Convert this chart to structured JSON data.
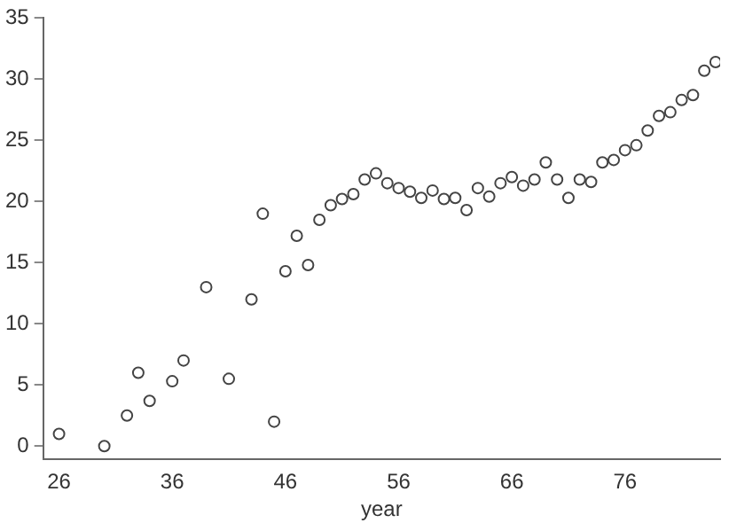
{
  "chart_data": {
    "type": "scatter",
    "xlabel": "year",
    "x": [
      26,
      30,
      32,
      33,
      34,
      36,
      37,
      39,
      41,
      43,
      44,
      45,
      46,
      47,
      48,
      49,
      50,
      51,
      52,
      53,
      54,
      55,
      56,
      57,
      58,
      59,
      60,
      61,
      62,
      63,
      64,
      65,
      66,
      67,
      68,
      69,
      70,
      71,
      72,
      73,
      74,
      75,
      76,
      77,
      78,
      79,
      80,
      81,
      82,
      83,
      84
    ],
    "series": [
      {
        "color": "#444444",
        "values": [
          1,
          0,
          2.5,
          6,
          3.7,
          5.3,
          7,
          13,
          5.5,
          12,
          19,
          2,
          14.3,
          17.2,
          14.8,
          18.5,
          19.7,
          20.2,
          20.6,
          21.8,
          22.3,
          21.5,
          21.1,
          20.8,
          20.3,
          20.9,
          20.2,
          20.3,
          19.3,
          21.1,
          20.4,
          21.5,
          22,
          21.3,
          21.8,
          23.2,
          21.8,
          20.3,
          21.8,
          21.6,
          23.2,
          23.4,
          24.2,
          24.6,
          25.8,
          27,
          27.3,
          28.3,
          28.7,
          30.7,
          31.4
        ]
      }
    ],
    "xlim": [
      24.6,
      84.4
    ],
    "ylim": [
      -1.1,
      35
    ],
    "xticks": [
      26,
      36,
      46,
      56,
      66,
      76
    ],
    "yticks": [
      0,
      5,
      10,
      15,
      20,
      25,
      30,
      35
    ],
    "marker": "circle",
    "grid": false,
    "legend": false
  }
}
